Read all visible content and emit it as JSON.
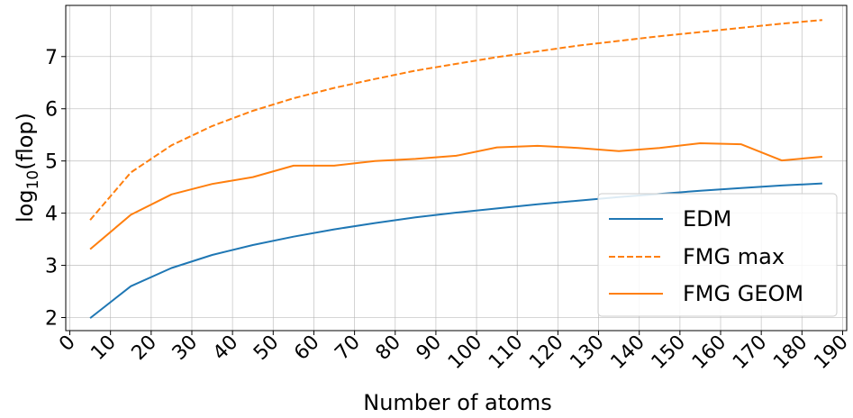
{
  "chart_data": {
    "type": "line",
    "xlabel": "Number of atoms",
    "ylabel_main": "log",
    "ylabel_sub": "10",
    "ylabel_rest": "(flop)",
    "xlim": [
      -1,
      191
    ],
    "ylim": [
      1.75,
      7.98
    ],
    "xticks": [
      0,
      10,
      20,
      30,
      40,
      50,
      60,
      70,
      80,
      90,
      100,
      110,
      120,
      130,
      140,
      150,
      160,
      170,
      180,
      190
    ],
    "xtick_labels": [
      "0",
      "10",
      "20",
      "30",
      "40",
      "50",
      "60",
      "70",
      "80",
      "90",
      "100",
      "110",
      "120",
      "130",
      "140",
      "150",
      "160",
      "170",
      "180",
      "190"
    ],
    "yticks": [
      2,
      3,
      4,
      5,
      6,
      7
    ],
    "ytick_labels": [
      "2",
      "3",
      "4",
      "5",
      "6",
      "7"
    ],
    "grid": true,
    "legend_position": "bottom-right",
    "x": [
      5,
      15,
      25,
      35,
      45,
      55,
      65,
      75,
      85,
      95,
      105,
      115,
      125,
      135,
      145,
      155,
      165,
      175,
      185
    ],
    "series": [
      {
        "name": "EDM",
        "color": "#1f77b4",
        "dash": "solid",
        "values": [
          1.99,
          2.6,
          2.95,
          3.2,
          3.39,
          3.55,
          3.69,
          3.81,
          3.92,
          4.01,
          4.09,
          4.17,
          4.24,
          4.31,
          4.37,
          4.43,
          4.48,
          4.53,
          4.57
        ]
      },
      {
        "name": "FMG max",
        "color": "#ff7f0e",
        "dash": "dashed",
        "values": [
          3.87,
          4.78,
          5.3,
          5.67,
          5.96,
          6.2,
          6.4,
          6.57,
          6.73,
          6.86,
          6.99,
          7.1,
          7.21,
          7.3,
          7.39,
          7.47,
          7.55,
          7.63,
          7.7
        ]
      },
      {
        "name": "FMG GEOM",
        "color": "#ff7f0e",
        "dash": "solid",
        "values": [
          3.31,
          3.97,
          4.36,
          4.56,
          4.69,
          4.91,
          4.91,
          5.0,
          5.04,
          5.1,
          5.26,
          5.29,
          5.25,
          5.19,
          5.25,
          5.34,
          5.32,
          5.01,
          5.08
        ]
      }
    ]
  }
}
